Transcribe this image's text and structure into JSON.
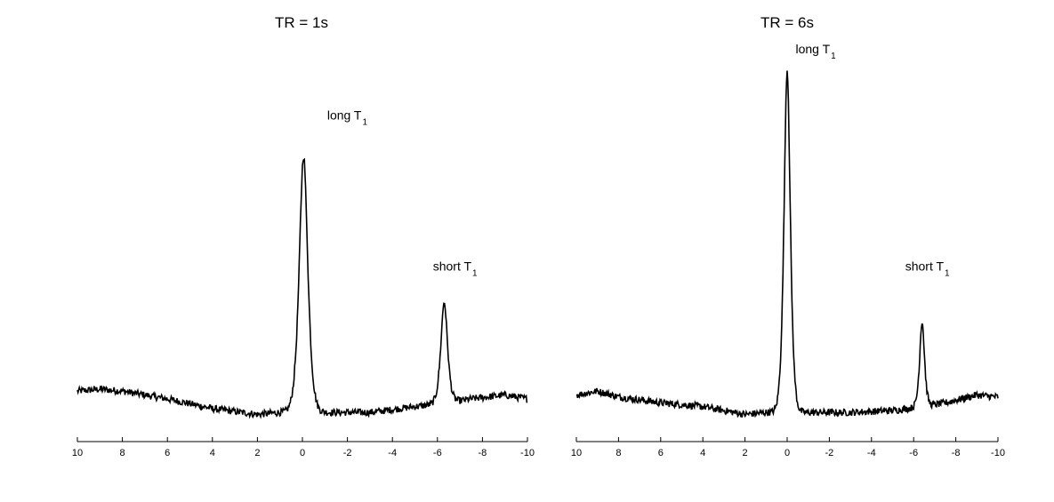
{
  "chart_data": [
    {
      "type": "line",
      "title": "TR = 1s",
      "xlabel": "",
      "ylabel": "",
      "xlim": [
        10,
        -10
      ],
      "x_reversed": true,
      "ylim": [
        0,
        1
      ],
      "grid": false,
      "legend": "none",
      "line_color": "#000000",
      "xticks": [
        10,
        8,
        6,
        4,
        2,
        0,
        -2,
        -4,
        -6,
        -8,
        -10
      ],
      "xtick_labels": [
        "10",
        "8",
        "6",
        "4",
        "2",
        "0",
        "-2",
        "-4",
        "-6",
        "-8",
        "-10"
      ],
      "annotations": [
        {
          "text": "long T",
          "sub": "1",
          "x": -1.1,
          "y": 0.83
        },
        {
          "text": "short T",
          "sub": "1",
          "x": -5.8,
          "y": 0.44
        }
      ],
      "series": [
        {
          "baseline": [
            [
              10,
              0.13
            ],
            [
              9,
              0.135
            ],
            [
              8,
              0.13
            ],
            [
              6,
              0.11
            ],
            [
              4,
              0.085
            ],
            [
              2,
              0.07
            ],
            [
              1,
              0.075
            ],
            [
              -1,
              0.075
            ],
            [
              -3,
              0.075
            ],
            [
              -5,
              0.09
            ],
            [
              -6.5,
              0.1
            ],
            [
              -7.5,
              0.11
            ],
            [
              -9,
              0.12
            ],
            [
              -10,
              0.11
            ]
          ],
          "peaks": [
            {
              "center": -0.05,
              "height": 0.66,
              "width": 0.28
            },
            {
              "center": -6.3,
              "height": 0.26,
              "width": 0.22
            }
          ]
        }
      ]
    },
    {
      "type": "line",
      "title": "TR = 6s",
      "xlabel": "",
      "ylabel": "",
      "xlim": [
        10,
        -10
      ],
      "x_reversed": true,
      "ylim": [
        0,
        1
      ],
      "grid": false,
      "legend": "none",
      "line_color": "#000000",
      "xticks": [
        10,
        8,
        6,
        4,
        2,
        0,
        -2,
        -4,
        -6,
        -8,
        -10
      ],
      "xtick_labels": [
        "10",
        "8",
        "6",
        "4",
        "2",
        "0",
        "-2",
        "-4",
        "-6",
        "-8",
        "-10"
      ],
      "annotations": [
        {
          "text": "long T",
          "sub": "1",
          "x": -0.4,
          "y": 1.0
        },
        {
          "text": "short T",
          "sub": "1",
          "x": -5.6,
          "y": 0.44
        }
      ],
      "series": [
        {
          "baseline": [
            [
              10,
              0.12
            ],
            [
              9,
              0.13
            ],
            [
              8,
              0.115
            ],
            [
              6,
              0.1
            ],
            [
              4,
              0.09
            ],
            [
              2,
              0.07
            ],
            [
              1,
              0.075
            ],
            [
              -1,
              0.075
            ],
            [
              -3,
              0.075
            ],
            [
              -5,
              0.08
            ],
            [
              -6.5,
              0.09
            ],
            [
              -7.5,
              0.1
            ],
            [
              -9,
              0.12
            ],
            [
              -10,
              0.115
            ]
          ],
          "peaks": [
            {
              "center": 0.0,
              "height": 0.88,
              "width": 0.22
            },
            {
              "center": -6.4,
              "height": 0.22,
              "width": 0.17
            }
          ]
        }
      ]
    }
  ]
}
